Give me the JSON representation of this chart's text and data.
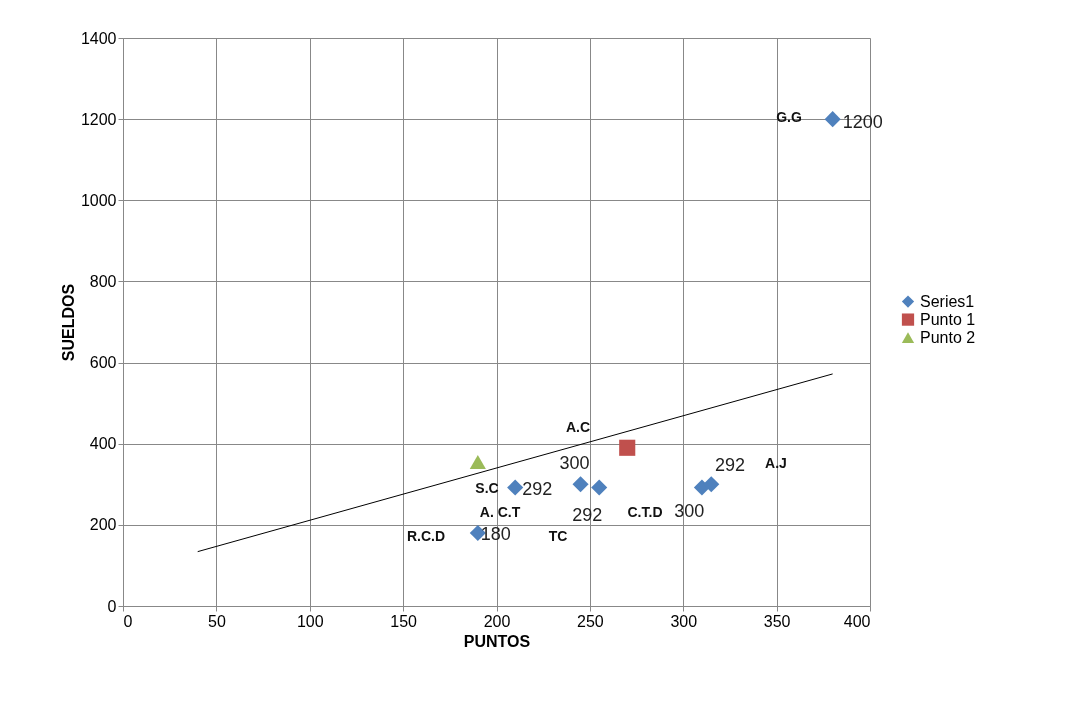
{
  "chart_data": {
    "type": "scatter",
    "xlabel": "PUNTOS",
    "ylabel": "SUELDOS",
    "xlim": [
      0,
      400
    ],
    "xticks": [
      0,
      50,
      100,
      150,
      200,
      250,
      300,
      350,
      400
    ],
    "ylim": [
      0,
      1400
    ],
    "yticks": [
      0,
      200,
      400,
      600,
      800,
      1000,
      1200,
      1400
    ],
    "grid": true,
    "legend": "right",
    "series": [
      {
        "name": "Series1",
        "color": "#4f81bd",
        "marker": "diamond",
        "x": [
          190,
          210,
          245,
          255,
          310,
          315,
          380
        ],
        "values": [
          180,
          292,
          300,
          292,
          292,
          300,
          1200
        ],
        "value_labels": [
          "180",
          "292",
          "300",
          "292",
          "292",
          "300",
          "1200"
        ]
      },
      {
        "name": "Punto 1",
        "color": "#c0504d",
        "marker": "square",
        "x": [
          270
        ],
        "values": [
          390
        ]
      },
      {
        "name": "Punto 2",
        "color": "#9bbb59",
        "marker": "triangle",
        "x": [
          190
        ],
        "values": [
          355
        ]
      },
      {
        "type": "line",
        "color": "#000000",
        "marker": "none",
        "line_style": "solid",
        "x": [
          40,
          380
        ],
        "values": [
          134,
          572
        ]
      }
    ],
    "annotations": [
      "G.G",
      "S.C",
      "A.C",
      "A.J",
      "A. C.T",
      "C.T.D",
      "R.C.D",
      "TC"
    ]
  }
}
